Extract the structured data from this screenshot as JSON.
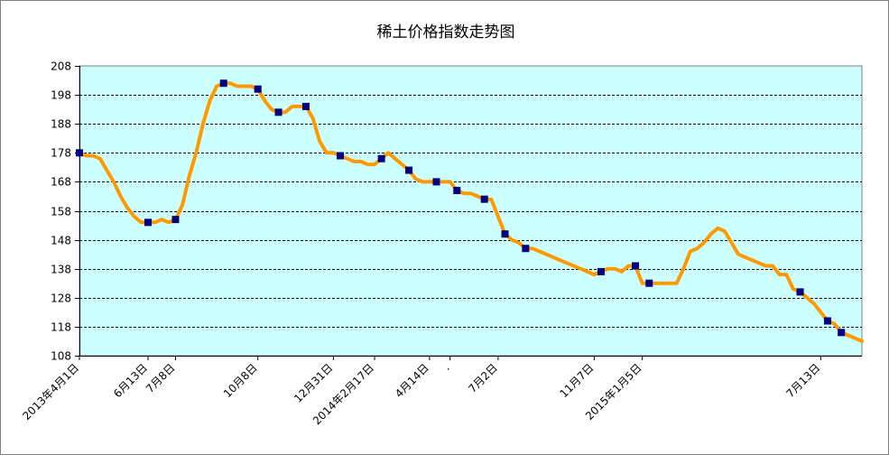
{
  "chart_data": {
    "type": "line",
    "title": "稀土价格指数走势图",
    "xlabel": "",
    "ylabel": "",
    "ylim": [
      108,
      208
    ],
    "yticks": [
      108,
      118,
      128,
      138,
      148,
      158,
      168,
      178,
      188,
      198,
      208
    ],
    "x_tick_labels": [
      {
        "label": "2013年4月1日",
        "index": 0
      },
      {
        "label": "6月13日",
        "index": 10
      },
      {
        "label": "7月8日",
        "index": 14
      },
      {
        "label": "10月8日",
        "index": 26
      },
      {
        "label": "12月31日",
        "index": 37
      },
      {
        "label": "2014年2月17日",
        "index": 43
      },
      {
        "label": "4月14日",
        "index": 51
      },
      {
        "label": ".",
        "index": 54
      },
      {
        "label": "7月2日",
        "index": 61
      },
      {
        "label": "11月7日",
        "index": 75
      },
      {
        "label": "2015年1月5日",
        "index": 82
      },
      {
        "label": "7月13日",
        "index": 108
      }
    ],
    "n_points": 115,
    "grid": true,
    "background_color": "#ccffff",
    "line_color": "#ff9900",
    "marker_color": "#000080",
    "series": [
      {
        "values": [
          178,
          177,
          177,
          176,
          172,
          168,
          163,
          159,
          156,
          154,
          154,
          154,
          155,
          154,
          155,
          160,
          170,
          178,
          188,
          196,
          201,
          202,
          202,
          201,
          201,
          201,
          200,
          196,
          193,
          192,
          192,
          194,
          194,
          194,
          190,
          182,
          178,
          178,
          177,
          176,
          175,
          175,
          174,
          174,
          176,
          178,
          176,
          174,
          172,
          169,
          168,
          168,
          168,
          168,
          168,
          165,
          164,
          164,
          163,
          162,
          162,
          156,
          150,
          148,
          147,
          145,
          145,
          144,
          143,
          142,
          141,
          140,
          139,
          138,
          137,
          136,
          137,
          138,
          138,
          137,
          139,
          139,
          133,
          133,
          133,
          133,
          133,
          133,
          138,
          144,
          145,
          147,
          150,
          152,
          151,
          147,
          143,
          142,
          141,
          140,
          139,
          139,
          136,
          136,
          131,
          130,
          128,
          126,
          123,
          120,
          119,
          116,
          115,
          114,
          113
        ],
        "marker_indices": [
          0,
          10,
          14,
          21,
          26,
          29,
          33,
          38,
          44,
          48,
          52,
          55,
          59,
          62,
          65,
          76,
          81,
          83,
          105,
          109,
          111
        ]
      }
    ]
  }
}
